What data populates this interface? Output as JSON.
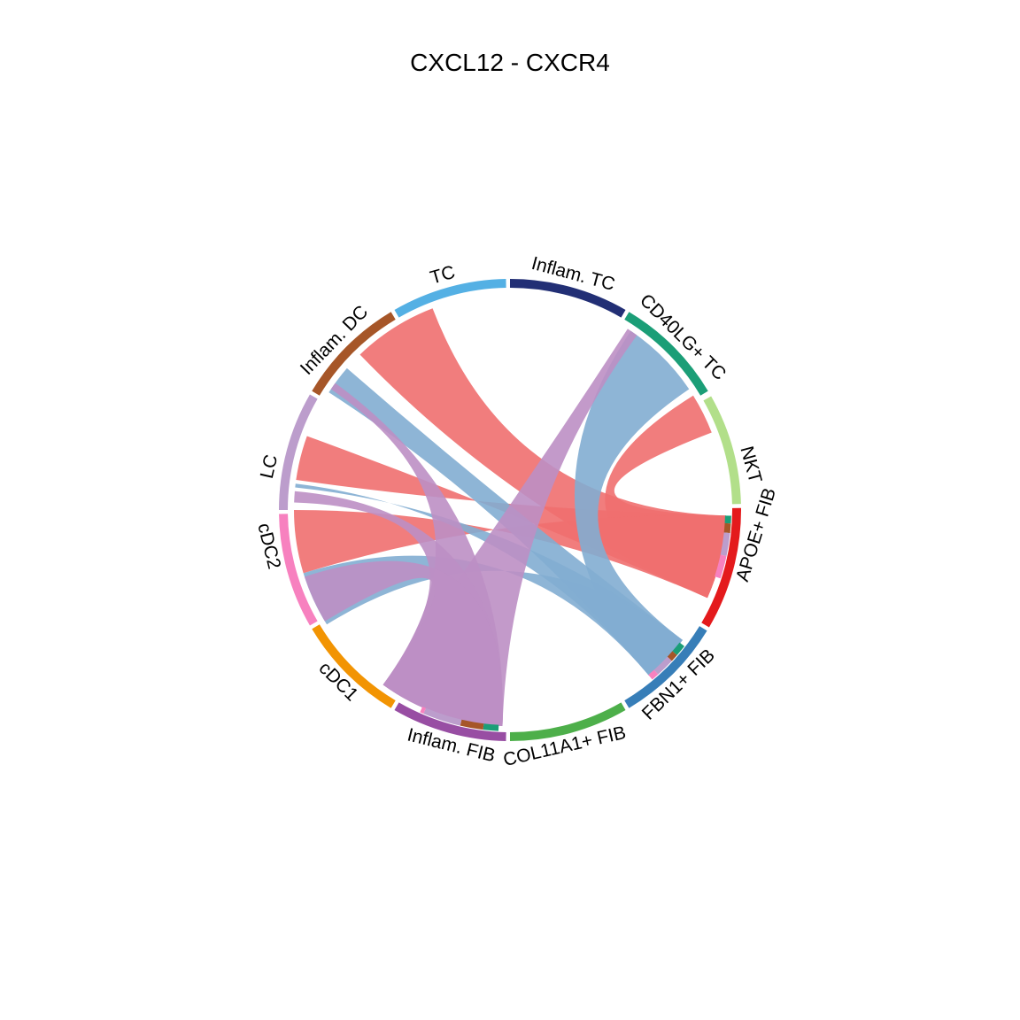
{
  "chart_data": {
    "type": "chord",
    "title": "CXCL12 - CXCR4",
    "sectors": [
      {
        "name": "APOE+ FIB",
        "color": "#E41A1C"
      },
      {
        "name": "FBN1+ FIB",
        "color": "#377EB8"
      },
      {
        "name": "COL11A1+ FIB",
        "color": "#4DAF4A"
      },
      {
        "name": "Inflam. FIB",
        "color": "#984EA3"
      },
      {
        "name": "cDC1",
        "color": "#F29403"
      },
      {
        "name": "cDC2",
        "color": "#F781BF"
      },
      {
        "name": "LC",
        "color": "#BC9DCC"
      },
      {
        "name": "Inflam. DC",
        "color": "#A65628"
      },
      {
        "name": "TC",
        "color": "#54B0E4"
      },
      {
        "name": "Inflam. TC",
        "color": "#222F75"
      },
      {
        "name": "CD40LG+ TC",
        "color": "#1B9E77"
      },
      {
        "name": "NKT",
        "color": "#B2DF8A"
      }
    ],
    "links": [
      {
        "source": "APOE+ FIB",
        "target": "NKT",
        "value": 0.75,
        "color": "#EF6F6F"
      },
      {
        "source": "APOE+ FIB",
        "target": "Inflam. DC",
        "value": 0.75,
        "color": "#EF6F6F"
      },
      {
        "source": "APOE+ FIB",
        "target": "LC",
        "value": 0.75,
        "color": "#EF6F6F"
      },
      {
        "source": "APOE+ FIB",
        "target": "cDC2",
        "value": 0.75,
        "color": "#EF6F6F"
      },
      {
        "source": "FBN1+ FIB",
        "target": "CD40LG+ TC",
        "value": 0.75,
        "color": "#82ADD2"
      },
      {
        "source": "FBN1+ FIB",
        "target": "Inflam. DC",
        "value": 0.75,
        "color": "#82ADD2"
      },
      {
        "source": "FBN1+ FIB",
        "target": "LC",
        "value": 0.75,
        "color": "#82ADD2"
      },
      {
        "source": "FBN1+ FIB",
        "target": "cDC2",
        "value": 0.75,
        "color": "#82ADD2"
      },
      {
        "source": "Inflam. FIB",
        "target": "CD40LG+ TC",
        "value": 0.35,
        "color": "#BC8FC4"
      },
      {
        "source": "Inflam. FIB",
        "target": "Inflam. DC",
        "value": 0.35,
        "color": "#BC8FC4"
      },
      {
        "source": "Inflam. FIB",
        "target": "LC",
        "value": 0.35,
        "color": "#BC8FC4"
      },
      {
        "source": "Inflam. FIB",
        "target": "cDC2",
        "value": 0.35,
        "color": "#BC8FC4"
      }
    ]
  }
}
